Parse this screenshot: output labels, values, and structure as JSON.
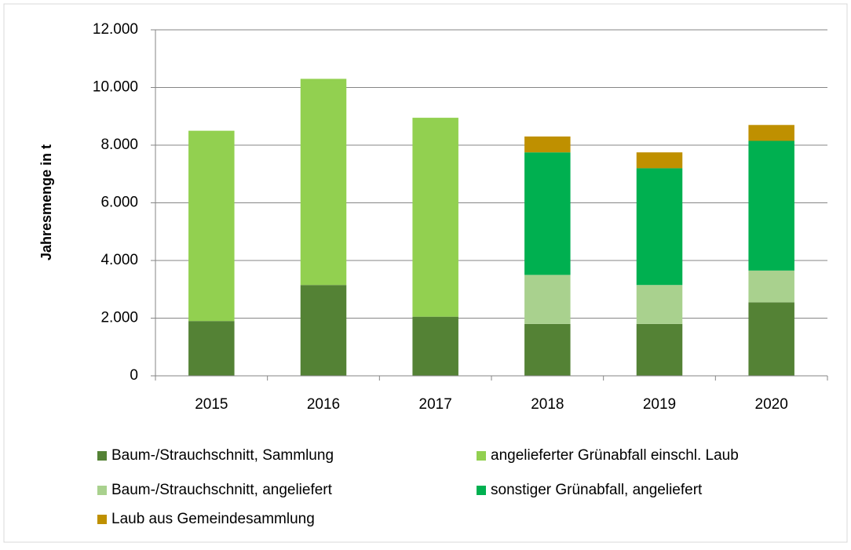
{
  "chart_data": {
    "type": "stacked_bar",
    "y_label": "Jahresmenge in t",
    "categories": [
      "2015",
      "2016",
      "2017",
      "2018",
      "2019",
      "2020"
    ],
    "series": [
      {
        "name": "Baum-/Strauchschnitt, Sammlung",
        "color": "#548235",
        "values": [
          1900,
          3150,
          2050,
          1800,
          1800,
          2550
        ]
      },
      {
        "name": "angelieferter Grünabfall einschl. Laub",
        "color": "#92d050",
        "values": [
          6600,
          7150,
          6900,
          null,
          null,
          null
        ]
      },
      {
        "name": "Baum-/Strauchschnitt, angeliefert",
        "color": "#a9d18e",
        "values": [
          null,
          null,
          null,
          1700,
          1350,
          1100
        ]
      },
      {
        "name": "sonstiger Grünabfall, angeliefert",
        "color": "#00b050",
        "values": [
          null,
          null,
          null,
          4250,
          4050,
          4500
        ]
      },
      {
        "name": "Laub aus Gemeindesammlung",
        "color": "#bf9000",
        "values": [
          null,
          null,
          null,
          550,
          550,
          550
        ]
      }
    ],
    "ylim": [
      0,
      12000
    ],
    "yticks": [
      0,
      {
        "value": 2000,
        "label": "2.000"
      },
      {
        "value": 4000,
        "label": "4.000"
      },
      {
        "value": 6000,
        "label": "6.000"
      },
      {
        "value": 8000,
        "label": "8.000"
      },
      {
        "value": 10000,
        "label": "10.000"
      },
      {
        "value": 12000,
        "label": "12.000"
      }
    ],
    "grid": true
  }
}
